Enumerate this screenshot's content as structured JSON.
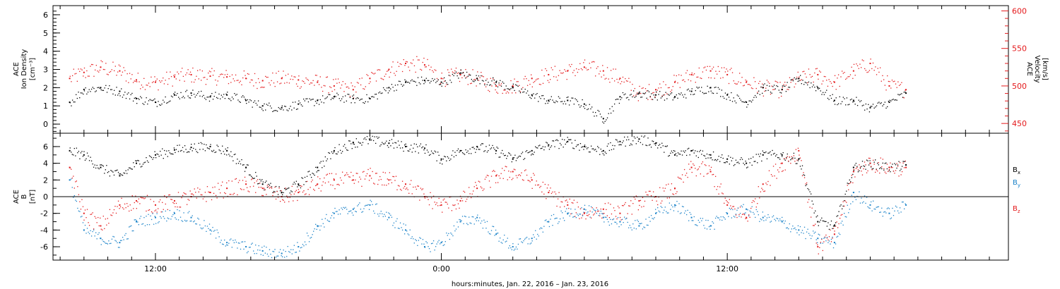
{
  "chart_data": [
    {
      "type": "scatter",
      "panel": "ion-density-velocity",
      "ylabel_left": [
        "ACE",
        "Ion Density",
        "[cm⁻³]"
      ],
      "ylabel_right": [
        "ACE",
        "Velocity",
        "[km/s]"
      ],
      "ylim_left": [
        -0.5,
        6.5
      ],
      "ylim_right": [
        437,
        607
      ],
      "yticks_left": [
        "0",
        "1",
        "2",
        "3",
        "4",
        "5",
        "6"
      ],
      "yticks_right": [
        "450",
        "500",
        "550",
        "600"
      ],
      "series": [
        {
          "name": "Ion Density",
          "axis": "left",
          "color": "#000000",
          "x_hours": [
            0.4,
            1.0,
            1.7,
            2.5,
            3.2,
            4.0,
            4.8,
            5.5,
            6.3,
            7.0,
            7.8,
            8.5,
            9.3,
            10.0,
            10.8,
            11.5,
            12.3,
            13.0,
            13.8,
            14.5,
            15.3,
            16.0,
            16.8,
            17.5,
            18.3,
            19.0,
            19.8,
            20.5,
            21.3,
            22.0,
            22.8,
            23.5,
            24.3,
            25.0,
            25.8,
            26.5,
            27.3,
            28.0,
            28.8,
            29.5,
            30.3,
            31.0,
            31.8,
            32.5,
            33.3,
            34.0,
            34.8,
            35.5
          ],
          "values": [
            1.2,
            1.9,
            2.0,
            1.8,
            1.4,
            1.2,
            1.6,
            1.7,
            1.5,
            1.6,
            1.3,
            1.0,
            0.9,
            1.1,
            1.3,
            1.5,
            1.4,
            1.4,
            2.0,
            2.3,
            2.4,
            2.3,
            2.8,
            2.5,
            2.3,
            2.0,
            1.6,
            1.3,
            1.3,
            1.1,
            0.3,
            1.5,
            1.7,
            1.6,
            1.5,
            1.8,
            2.0,
            1.6,
            1.2,
            2.0,
            1.9,
            2.5,
            2.0,
            1.3,
            1.3,
            0.9,
            1.2,
            1.7
          ]
        },
        {
          "name": "Velocity",
          "axis": "right",
          "color": "#e41a1c",
          "x_hours": [
            0.4,
            1.0,
            1.7,
            2.5,
            3.2,
            4.0,
            4.8,
            5.5,
            6.3,
            7.0,
            7.8,
            8.5,
            9.3,
            10.0,
            10.8,
            11.5,
            12.3,
            13.0,
            13.8,
            14.5,
            15.3,
            16.0,
            16.8,
            17.5,
            18.3,
            19.0,
            19.8,
            20.5,
            21.3,
            22.0,
            22.8,
            23.5,
            24.3,
            25.0,
            25.8,
            26.5,
            27.3,
            28.0,
            28.8,
            29.5,
            30.3,
            31.0,
            31.8,
            32.5,
            33.3,
            34.0,
            34.8,
            35.5
          ],
          "values": [
            510,
            518,
            525,
            520,
            508,
            505,
            512,
            515,
            513,
            512,
            510,
            507,
            510,
            508,
            505,
            500,
            495,
            510,
            522,
            530,
            528,
            510,
            515,
            510,
            500,
            500,
            510,
            515,
            520,
            525,
            520,
            510,
            490,
            495,
            505,
            515,
            520,
            515,
            505,
            498,
            495,
            510,
            515,
            505,
            520,
            530,
            500,
            495
          ]
        }
      ]
    },
    {
      "type": "scatter",
      "panel": "magnetic-field",
      "ylabel_left": [
        "ACE",
        "B",
        "[nT]"
      ],
      "ylim": [
        -7.6,
        7.6
      ],
      "yticks": [
        "-6",
        "-4",
        "-2",
        "0",
        "2",
        "4",
        "6"
      ],
      "zero_line": true,
      "series": [
        {
          "name": "Bx",
          "color": "#000000",
          "x_hours": [
            0.4,
            1.0,
            1.7,
            2.5,
            3.2,
            4.0,
            4.8,
            5.5,
            6.3,
            7.0,
            7.8,
            8.5,
            9.3,
            10.0,
            10.8,
            11.5,
            12.3,
            13.0,
            13.8,
            14.5,
            15.3,
            16.0,
            16.8,
            17.5,
            18.3,
            19.0,
            19.8,
            20.5,
            21.3,
            22.0,
            22.8,
            23.5,
            24.3,
            25.0,
            25.8,
            26.5,
            27.3,
            28.0,
            28.8,
            29.5,
            30.3,
            31.0,
            31.8,
            32.5,
            33.3,
            34.0,
            34.8,
            35.5
          ],
          "values": [
            5.5,
            5.0,
            3.5,
            2.5,
            4.0,
            5.0,
            5.6,
            5.9,
            6.0,
            5.5,
            3.5,
            1.5,
            0.5,
            1.5,
            3.5,
            5.5,
            6.5,
            6.8,
            6.4,
            6.0,
            5.8,
            4.5,
            5.5,
            6.0,
            5.5,
            4.5,
            5.5,
            6.2,
            6.6,
            6.0,
            5.5,
            6.6,
            6.9,
            6.4,
            5.0,
            5.5,
            5.0,
            4.5,
            4.0,
            5.0,
            5.0,
            4.5,
            -3.0,
            -3.5,
            3.5,
            4.0,
            3.5,
            3.8
          ]
        },
        {
          "name": "By",
          "color": "#1a82c8",
          "x_hours": [
            0.4,
            1.0,
            1.7,
            2.5,
            3.2,
            4.0,
            4.8,
            5.5,
            6.3,
            7.0,
            7.8,
            8.5,
            9.3,
            10.0,
            10.8,
            11.5,
            12.3,
            13.0,
            13.8,
            14.5,
            15.3,
            16.0,
            16.8,
            17.5,
            18.3,
            19.0,
            19.8,
            20.5,
            21.3,
            22.0,
            22.8,
            23.5,
            24.3,
            25.0,
            25.8,
            26.5,
            27.3,
            28.0,
            28.8,
            29.5,
            30.3,
            31.0,
            31.8,
            32.5,
            33.3,
            34.0,
            34.8,
            35.5
          ],
          "values": [
            2.0,
            -4.0,
            -5.0,
            -5.5,
            -3.0,
            -2.5,
            -2.0,
            -2.5,
            -4.0,
            -5.5,
            -6.0,
            -6.5,
            -6.8,
            -6.0,
            -3.5,
            -2.0,
            -1.5,
            -1.0,
            -2.5,
            -4.0,
            -6.0,
            -5.5,
            -3.0,
            -2.5,
            -4.5,
            -6.0,
            -5.0,
            -3.0,
            -2.0,
            -1.5,
            -2.5,
            -3.0,
            -3.5,
            -2.0,
            -1.0,
            -2.5,
            -3.5,
            -2.0,
            -1.5,
            -2.5,
            -3.0,
            -4.0,
            -5.0,
            -5.5,
            0.5,
            -1.0,
            -2.0,
            -1.0
          ]
        },
        {
          "name": "Bz",
          "color": "#e41a1c",
          "x_hours": [
            0.4,
            1.0,
            1.7,
            2.5,
            3.2,
            4.0,
            4.8,
            5.5,
            6.3,
            7.0,
            7.8,
            8.5,
            9.3,
            10.0,
            10.8,
            11.5,
            12.3,
            13.0,
            13.8,
            14.5,
            15.3,
            16.0,
            16.8,
            17.5,
            18.3,
            19.0,
            19.8,
            20.5,
            21.3,
            22.0,
            22.8,
            23.5,
            24.3,
            25.0,
            25.8,
            26.5,
            27.3,
            28.0,
            28.8,
            29.5,
            30.3,
            31.0,
            31.8,
            32.5,
            33.3,
            34.0,
            34.8,
            35.5
          ],
          "values": [
            3.5,
            -2.0,
            -3.5,
            -1.0,
            -0.5,
            -1.0,
            -0.5,
            0.0,
            0.5,
            1.0,
            1.5,
            1.0,
            0.0,
            0.5,
            1.5,
            2.0,
            2.0,
            2.5,
            2.0,
            1.5,
            0.0,
            -1.0,
            -0.5,
            1.0,
            2.5,
            3.0,
            2.0,
            0.5,
            -1.0,
            -2.0,
            -1.5,
            -2.0,
            -0.5,
            0.0,
            1.0,
            3.5,
            3.0,
            -1.0,
            -2.5,
            1.5,
            4.0,
            5.5,
            -6.0,
            -4.5,
            3.0,
            4.0,
            3.5,
            3.5
          ]
        }
      ],
      "legend": [
        "Bx",
        "By",
        "Bz"
      ],
      "legend_placement": "right"
    }
  ],
  "x_axis": {
    "range_hours": [
      -0.3,
      39.8
    ],
    "tick_labels": [
      {
        "hour": 4.0,
        "label": "12:00"
      },
      {
        "hour": 16.0,
        "label": "0:00"
      },
      {
        "hour": 28.0,
        "label": "12:00"
      }
    ],
    "title": "hours:minutes, Jan. 22, 2016 – Jan. 23, 2016"
  },
  "colors": {
    "density": "#000000",
    "velocity": "#e41a1c",
    "bx": "#000000",
    "by": "#1a82c8",
    "bz": "#e41a1c"
  }
}
